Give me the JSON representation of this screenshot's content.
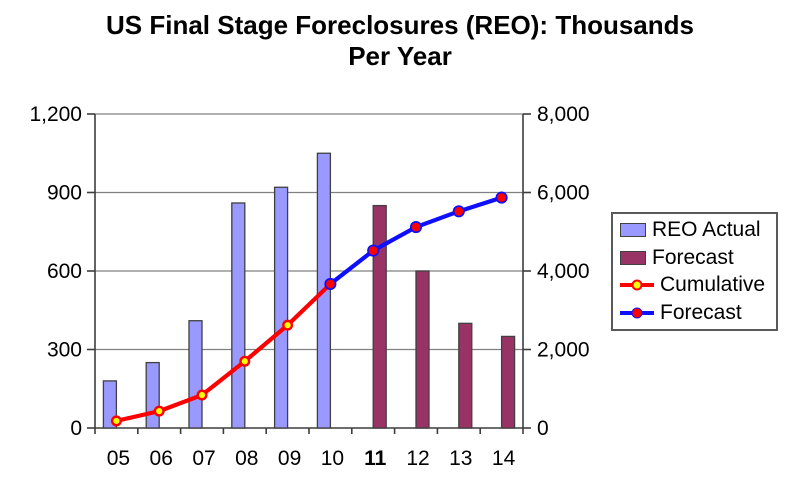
{
  "title": {
    "full": "US Final Stage Foreclosures (REO): Thousands Per Year",
    "lines": [
      "US Final Stage Foreclosures (REO): Thousands",
      "Per Year"
    ]
  },
  "chart_data": {
    "type": "bar",
    "subtype": "combo: annual bars + cumulative lines",
    "title": "US Final Stage Foreclosures (REO): Thousands Per Year",
    "categories": [
      "05",
      "06",
      "07",
      "08",
      "09",
      "10",
      "11",
      "12",
      "13",
      "14"
    ],
    "bold_categories": [
      "11"
    ],
    "left_axis": {
      "min": 0,
      "max": 1200,
      "step": 300,
      "ticks": [
        "0",
        "300",
        "600",
        "900",
        "1,200"
      ],
      "applies_to": "annual bars (thousands per year)"
    },
    "right_axis": {
      "min": 0,
      "max": 8000,
      "step": 2000,
      "ticks": [
        "0",
        "2,000",
        "4,000",
        "6,000",
        "8,000"
      ],
      "applies_to": "cumulative lines (thousands)"
    },
    "series": [
      {
        "name": "REO Actual",
        "type": "bar",
        "axis": "left",
        "color": "#9999ff",
        "border_color": "#404040",
        "values": [
          180,
          250,
          410,
          860,
          920,
          1050,
          null,
          null,
          null,
          null
        ]
      },
      {
        "name": "Forecast",
        "type": "bar",
        "axis": "left",
        "color": "#993366",
        "border_color": "#404040",
        "values": [
          null,
          null,
          null,
          null,
          null,
          null,
          850,
          600,
          400,
          350
        ]
      },
      {
        "name": "Cumulative",
        "type": "line",
        "axis": "right",
        "color": "#ff0000",
        "marker_fill": "#ffff00",
        "marker_stroke": "#ff0000",
        "values": [
          180,
          430,
          840,
          1700,
          2620,
          3670,
          null,
          null,
          null,
          null
        ]
      },
      {
        "name": "Forecast",
        "type": "line",
        "axis": "right",
        "color": "#0f0fff",
        "marker_fill": "#ff0000",
        "marker_stroke": "#0f0fff",
        "values": [
          null,
          null,
          null,
          null,
          null,
          3670,
          4520,
          5120,
          5520,
          5870
        ]
      }
    ],
    "grid": true,
    "gridline_color": "#808080",
    "axis_color": "#3d3d3d",
    "legend_position": "right",
    "background": "#ffffff"
  }
}
